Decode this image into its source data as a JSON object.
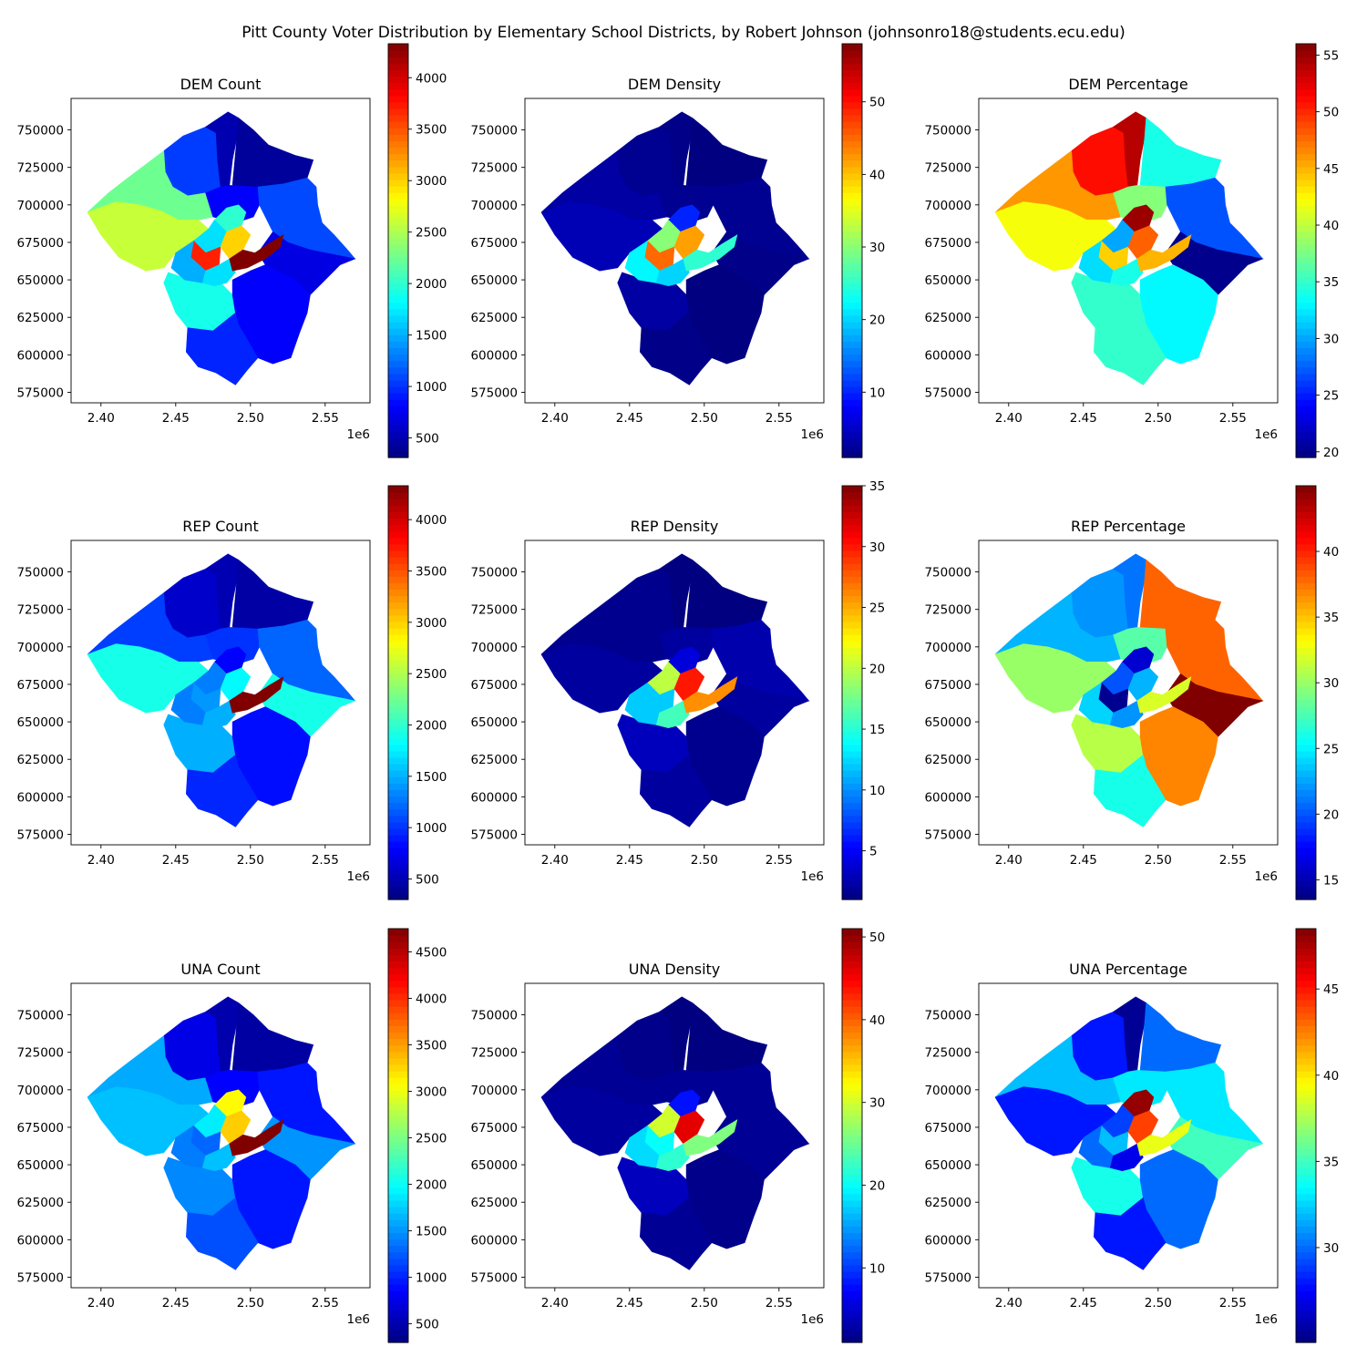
{
  "figure": {
    "title": "Pitt County Voter Distribution by Elementary School Districts, by Robert Johnson (johnsonro18@students.ecu.edu)"
  },
  "chart_data": [
    {
      "type": "choropleth-map",
      "title": "DEM Count",
      "xlim": [
        2380000,
        2580000
      ],
      "ylim": [
        568000,
        771000
      ],
      "x_ticks": [
        "2.40",
        "2.45",
        "2.50",
        "2.55"
      ],
      "x_ticks_values": [
        2400000,
        2450000,
        2500000,
        2550000
      ],
      "x_offset_label": "1e6",
      "y_ticks": [
        "575000",
        "600000",
        "625000",
        "650000",
        "675000",
        "700000",
        "725000",
        "750000"
      ],
      "y_ticks_values": [
        575000,
        600000,
        625000,
        650000,
        675000,
        700000,
        725000,
        750000
      ],
      "colorbar": {
        "colormap": "jet",
        "range": [
          310,
          4330
        ],
        "ticks": [
          "500",
          "1000",
          "1500",
          "2000",
          "2500",
          "3000",
          "3500",
          "4000"
        ],
        "ticks_values": [
          500,
          1000,
          1500,
          2000,
          2500,
          3000,
          3500,
          4000
        ]
      },
      "district_values": [
        1050,
        500,
        420,
        2250,
        2600,
        800,
        1100,
        700,
        1900,
        800,
        950,
        2000,
        1700,
        3700,
        3000,
        1500,
        1700,
        4330
      ]
    },
    {
      "type": "choropleth-map",
      "title": "DEM Density",
      "xlim": [
        2380000,
        2580000
      ],
      "ylim": [
        568000,
        771000
      ],
      "x_ticks": [
        "2.40",
        "2.45",
        "2.50",
        "2.55"
      ],
      "x_ticks_values": [
        2400000,
        2450000,
        2500000,
        2550000
      ],
      "x_offset_label": "1e6",
      "y_ticks": [
        "575000",
        "600000",
        "625000",
        "650000",
        "675000",
        "700000",
        "725000",
        "750000"
      ],
      "y_ticks_values": [
        575000,
        600000,
        625000,
        650000,
        675000,
        700000,
        725000,
        750000
      ],
      "colorbar": {
        "colormap": "jet",
        "range": [
          1,
          58
        ],
        "ticks": [
          "10",
          "20",
          "30",
          "40",
          "50"
        ],
        "ticks_values": [
          10,
          20,
          30,
          40,
          50
        ]
      },
      "district_values": [
        2,
        1.5,
        1,
        3,
        4,
        2,
        2,
        1.5,
        3,
        1,
        1.5,
        10,
        30,
        45,
        42,
        22,
        20,
        25
      ]
    },
    {
      "type": "choropleth-map",
      "title": "DEM Percentage",
      "xlim": [
        2380000,
        2580000
      ],
      "ylim": [
        568000,
        771000
      ],
      "x_ticks": [
        "2.40",
        "2.45",
        "2.50",
        "2.55"
      ],
      "x_ticks_values": [
        2400000,
        2450000,
        2500000,
        2550000
      ],
      "x_offset_label": "1e6",
      "y_ticks": [
        "575000",
        "600000",
        "625000",
        "650000",
        "675000",
        "700000",
        "725000",
        "750000"
      ],
      "y_ticks_values": [
        575000,
        600000,
        625000,
        650000,
        675000,
        700000,
        725000,
        750000
      ],
      "colorbar": {
        "colormap": "jet",
        "range": [
          19.5,
          56
        ],
        "ticks": [
          "20",
          "25",
          "30",
          "35",
          "40",
          "45",
          "50",
          "55"
        ],
        "ticks_values": [
          20,
          25,
          30,
          35,
          40,
          45,
          50,
          55
        ]
      },
      "district_values": [
        51,
        54,
        34,
        46,
        42,
        38,
        27,
        20,
        35,
        33,
        35,
        55,
        30,
        44,
        48,
        32,
        34,
        45
      ]
    },
    {
      "type": "choropleth-map",
      "title": "REP Count",
      "xlim": [
        2380000,
        2580000
      ],
      "ylim": [
        568000,
        771000
      ],
      "x_ticks": [
        "2.40",
        "2.45",
        "2.50",
        "2.55"
      ],
      "x_ticks_values": [
        2400000,
        2450000,
        2500000,
        2550000
      ],
      "x_offset_label": "1e6",
      "y_ticks": [
        "575000",
        "600000",
        "625000",
        "650000",
        "675000",
        "700000",
        "725000",
        "750000"
      ],
      "y_ticks_values": [
        575000,
        600000,
        625000,
        650000,
        675000,
        700000,
        725000,
        750000
      ],
      "colorbar": {
        "colormap": "jet",
        "range": [
          300,
          4330
        ],
        "ticks": [
          "500",
          "1000",
          "1500",
          "2000",
          "2500",
          "3000",
          "3500",
          "4000"
        ],
        "ticks_values": [
          500,
          1000,
          1500,
          2000,
          2500,
          3000,
          3500,
          4000
        ]
      },
      "district_values": [
        600,
        500,
        450,
        1050,
        1900,
        1000,
        1200,
        1900,
        1500,
        850,
        950,
        800,
        1300,
        1400,
        1800,
        1300,
        1500,
        4330
      ]
    },
    {
      "type": "choropleth-map",
      "title": "REP Density",
      "xlim": [
        2380000,
        2580000
      ],
      "ylim": [
        568000,
        771000
      ],
      "x_ticks": [
        "2.40",
        "2.45",
        "2.50",
        "2.55"
      ],
      "x_ticks_values": [
        2400000,
        2450000,
        2500000,
        2550000
      ],
      "x_offset_label": "1e6",
      "y_ticks": [
        "575000",
        "600000",
        "625000",
        "650000",
        "675000",
        "700000",
        "725000",
        "750000"
      ],
      "y_ticks_values": [
        575000,
        600000,
        625000,
        650000,
        675000,
        700000,
        725000,
        750000
      ],
      "colorbar": {
        "colormap": "jet",
        "range": [
          1,
          35
        ],
        "ticks": [
          "5",
          "10",
          "15",
          "20",
          "25",
          "30",
          "35"
        ],
        "ticks_values": [
          5,
          10,
          15,
          20,
          25,
          30,
          35
        ]
      },
      "district_values": [
        1.5,
        1,
        1,
        1.5,
        2,
        2,
        2.5,
        2,
        3,
        1.5,
        2,
        4,
        20,
        12,
        30,
        12,
        16,
        26
      ]
    },
    {
      "type": "choropleth-map",
      "title": "REP Percentage",
      "xlim": [
        2380000,
        2580000
      ],
      "ylim": [
        568000,
        771000
      ],
      "x_ticks": [
        "2.40",
        "2.45",
        "2.50",
        "2.55"
      ],
      "x_ticks_values": [
        2400000,
        2450000,
        2500000,
        2550000
      ],
      "x_offset_label": "1e6",
      "y_ticks": [
        "575000",
        "600000",
        "625000",
        "650000",
        "675000",
        "700000",
        "725000",
        "750000"
      ],
      "y_ticks_values": [
        575000,
        600000,
        625000,
        650000,
        675000,
        700000,
        725000,
        750000
      ],
      "colorbar": {
        "colormap": "jet",
        "range": [
          13.5,
          45
        ],
        "ticks": [
          "15",
          "20",
          "25",
          "30",
          "35",
          "40"
        ],
        "ticks_values": [
          15,
          20,
          25,
          30,
          35,
          40
        ]
      },
      "district_values": [
        22,
        21,
        38,
        23,
        30,
        28,
        38,
        45,
        31,
        37,
        26,
        16,
        20,
        14,
        23,
        24,
        22,
        32
      ]
    },
    {
      "type": "choropleth-map",
      "title": "UNA Count",
      "xlim": [
        2380000,
        2580000
      ],
      "ylim": [
        568000,
        771000
      ],
      "x_ticks": [
        "2.40",
        "2.45",
        "2.50",
        "2.55"
      ],
      "x_ticks_values": [
        2400000,
        2450000,
        2500000,
        2550000
      ],
      "x_offset_label": "1e6",
      "y_ticks": [
        "575000",
        "600000",
        "625000",
        "650000",
        "675000",
        "700000",
        "725000",
        "750000"
      ],
      "y_ticks_values": [
        575000,
        600000,
        625000,
        650000,
        675000,
        700000,
        725000,
        750000
      ],
      "colorbar": {
        "colormap": "jet",
        "range": [
          300,
          4750
        ],
        "ticks": [
          "500",
          "1000",
          "1500",
          "2000",
          "2500",
          "3000",
          "3500",
          "4000",
          "4500"
        ],
        "ticks_values": [
          500,
          1000,
          1500,
          2000,
          2500,
          3000,
          3500,
          4000,
          4500
        ]
      },
      "district_values": [
        750,
        500,
        450,
        1600,
        1700,
        850,
        950,
        1500,
        1450,
        950,
        1200,
        3100,
        1900,
        1300,
        3300,
        1400,
        1700,
        4750
      ]
    },
    {
      "type": "choropleth-map",
      "title": "UNA Density",
      "xlim": [
        2380000,
        2580000
      ],
      "ylim": [
        568000,
        771000
      ],
      "x_ticks": [
        "2.40",
        "2.45",
        "2.50",
        "2.55"
      ],
      "x_ticks_values": [
        2400000,
        2450000,
        2500000,
        2550000
      ],
      "x_offset_label": "1e6",
      "y_ticks": [
        "575000",
        "600000",
        "625000",
        "650000",
        "675000",
        "700000",
        "725000",
        "750000"
      ],
      "y_ticks_values": [
        575000,
        600000,
        625000,
        650000,
        675000,
        700000,
        725000,
        750000
      ],
      "colorbar": {
        "colormap": "jet",
        "range": [
          1,
          51
        ],
        "ticks": [
          "10",
          "20",
          "30",
          "40",
          "50"
        ],
        "ticks_values": [
          10,
          20,
          30,
          40,
          50
        ]
      },
      "district_values": [
        1.5,
        1,
        1,
        2,
        2.5,
        2,
        2,
        2,
        4,
        1.5,
        2,
        8,
        30,
        20,
        46,
        18,
        22,
        26
      ]
    },
    {
      "type": "choropleth-map",
      "title": "UNA Percentage",
      "xlim": [
        2380000,
        2580000
      ],
      "ylim": [
        568000,
        771000
      ],
      "x_ticks": [
        "2.40",
        "2.45",
        "2.50",
        "2.55"
      ],
      "x_ticks_values": [
        2400000,
        2450000,
        2500000,
        2550000
      ],
      "x_offset_label": "1e6",
      "y_ticks": [
        "575000",
        "600000",
        "625000",
        "650000",
        "675000",
        "700000",
        "725000",
        "750000"
      ],
      "y_ticks_values": [
        575000,
        600000,
        625000,
        650000,
        675000,
        700000,
        725000,
        750000
      ],
      "colorbar": {
        "colormap": "jet",
        "range": [
          24.5,
          48.5
        ],
        "ticks": [
          "30",
          "35",
          "40",
          "45"
        ],
        "ticks_values": [
          30,
          35,
          40,
          45
        ]
      },
      "district_values": [
        28,
        25,
        30,
        32,
        28,
        33,
        33,
        35,
        34,
        30,
        28,
        48,
        29,
        32,
        44,
        30,
        27,
        39
      ]
    }
  ]
}
